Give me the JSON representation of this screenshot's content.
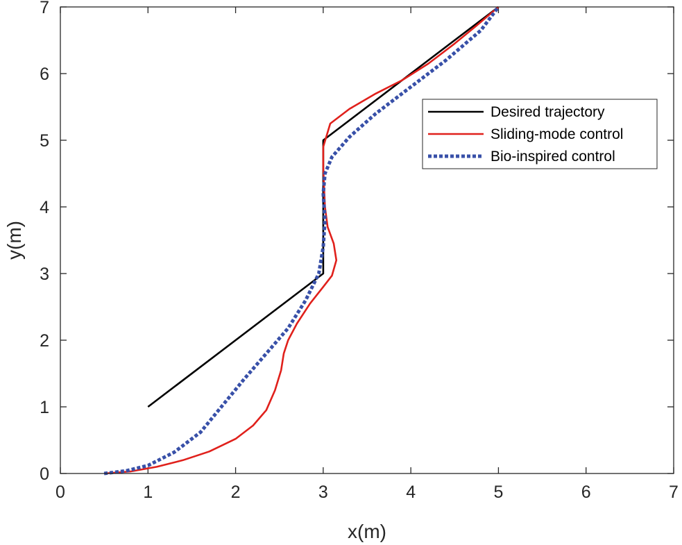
{
  "chart_data": {
    "type": "line",
    "title": "",
    "xlabel": "x(m)",
    "ylabel": "y(m)",
    "xlim": [
      0,
      7
    ],
    "ylim": [
      0,
      7
    ],
    "xticks": [
      0,
      1,
      2,
      3,
      4,
      5,
      6,
      7
    ],
    "yticks": [
      0,
      1,
      2,
      3,
      4,
      5,
      6,
      7
    ],
    "grid": false,
    "legend_position": "top-right",
    "series": [
      {
        "name": "Desired trajectory",
        "color": "#000000",
        "style": "solid",
        "points": [
          [
            1.0,
            1.0
          ],
          [
            3.0,
            3.0
          ],
          [
            3.0,
            5.0
          ],
          [
            5.0,
            7.0
          ]
        ]
      },
      {
        "name": "Sliding-mode control",
        "color": "#e0201b",
        "style": "solid",
        "points": [
          [
            0.5,
            0.0
          ],
          [
            0.8,
            0.03
          ],
          [
            1.1,
            0.1
          ],
          [
            1.4,
            0.2
          ],
          [
            1.7,
            0.33
          ],
          [
            2.0,
            0.52
          ],
          [
            2.2,
            0.72
          ],
          [
            2.35,
            0.95
          ],
          [
            2.45,
            1.25
          ],
          [
            2.52,
            1.55
          ],
          [
            2.55,
            1.8
          ],
          [
            2.6,
            2.0
          ],
          [
            2.7,
            2.25
          ],
          [
            2.85,
            2.55
          ],
          [
            3.0,
            2.8
          ],
          [
            3.1,
            2.97
          ],
          [
            3.15,
            3.2
          ],
          [
            3.12,
            3.45
          ],
          [
            3.05,
            3.7
          ],
          [
            3.02,
            4.0
          ],
          [
            3.01,
            4.3
          ],
          [
            3.0,
            4.6
          ],
          [
            3.0,
            4.9
          ],
          [
            3.08,
            5.25
          ],
          [
            3.3,
            5.47
          ],
          [
            3.6,
            5.7
          ],
          [
            3.9,
            5.9
          ],
          [
            4.2,
            6.15
          ],
          [
            4.5,
            6.45
          ],
          [
            4.75,
            6.72
          ],
          [
            5.0,
            7.0
          ]
        ]
      },
      {
        "name": "Bio-inspired control",
        "color": "#3850a8",
        "style": "dotted",
        "points": [
          [
            0.5,
            0.0
          ],
          [
            0.75,
            0.04
          ],
          [
            1.0,
            0.12
          ],
          [
            1.3,
            0.32
          ],
          [
            1.6,
            0.62
          ],
          [
            1.85,
            1.02
          ],
          [
            2.1,
            1.42
          ],
          [
            2.35,
            1.8
          ],
          [
            2.6,
            2.18
          ],
          [
            2.8,
            2.6
          ],
          [
            2.95,
            3.0
          ],
          [
            3.0,
            3.4
          ],
          [
            3.02,
            3.8
          ],
          [
            3.0,
            4.2
          ],
          [
            3.02,
            4.5
          ],
          [
            3.1,
            4.75
          ],
          [
            3.3,
            5.05
          ],
          [
            3.6,
            5.4
          ],
          [
            4.0,
            5.8
          ],
          [
            4.4,
            6.2
          ],
          [
            4.8,
            6.65
          ],
          [
            5.0,
            7.0
          ]
        ]
      }
    ]
  }
}
